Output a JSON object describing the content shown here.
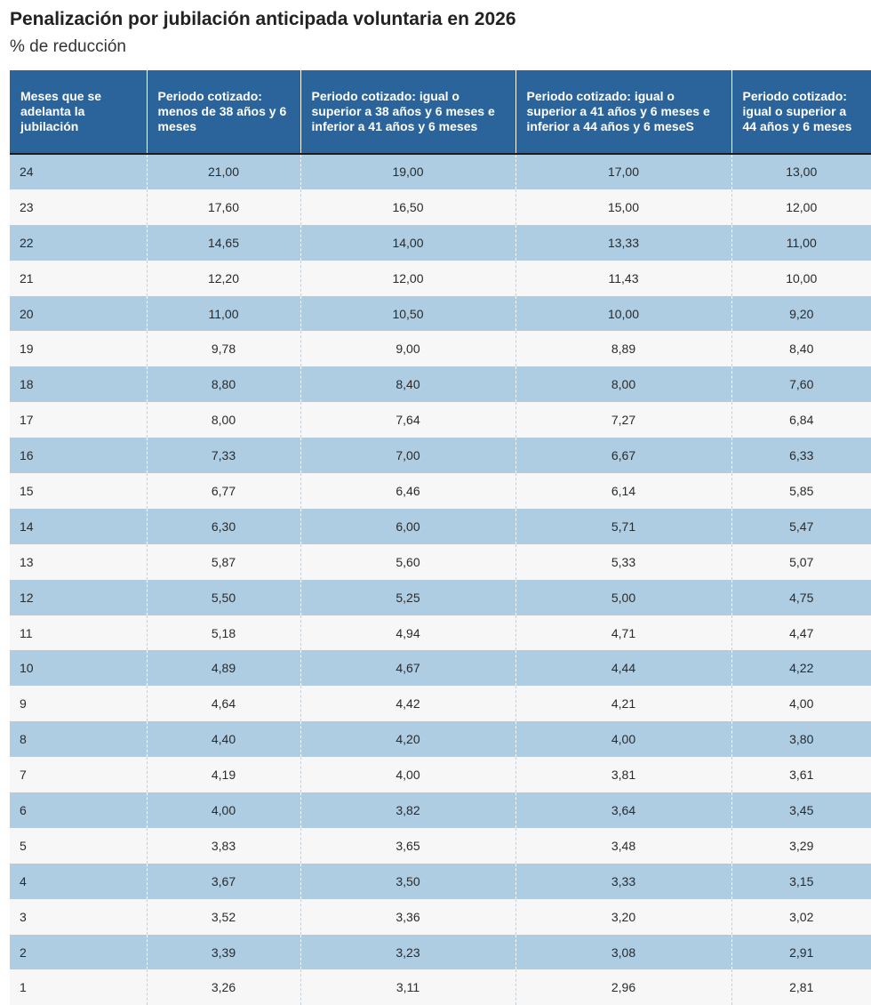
{
  "header": {
    "title": "Penalización por jubilación anticipada voluntaria en 2026",
    "subtitle": "% de reducción"
  },
  "chart_data": {
    "type": "table",
    "title": "Penalización por jubilación anticipada voluntaria en 2026",
    "subtitle": "% de reducción",
    "columns": [
      "Meses que se adelanta la jubilación",
      "Periodo cotizado: menos de 38 años y 6 meses",
      "Periodo cotizado: igual o superior a 38 años y 6 meses e inferior a 41 años y 6 meses",
      "Periodo cotizado: igual o superior a 41 años y 6 meses e inferior a 44 años y 6 meseS",
      "Periodo cotizado: igual o superior a 44 años y 6 meses"
    ],
    "rows": [
      [
        "24",
        "21,00",
        "19,00",
        "17,00",
        "13,00"
      ],
      [
        "23",
        "17,60",
        "16,50",
        "15,00",
        "12,00"
      ],
      [
        "22",
        "14,65",
        "14,00",
        "13,33",
        "11,00"
      ],
      [
        "21",
        "12,20",
        "12,00",
        "11,43",
        "10,00"
      ],
      [
        "20",
        "11,00",
        "10,50",
        "10,00",
        "9,20"
      ],
      [
        "19",
        "9,78",
        "9,00",
        "8,89",
        "8,40"
      ],
      [
        "18",
        "8,80",
        "8,40",
        "8,00",
        "7,60"
      ],
      [
        "17",
        "8,00",
        "7,64",
        "7,27",
        "6,84"
      ],
      [
        "16",
        "7,33",
        "7,00",
        "6,67",
        "6,33"
      ],
      [
        "15",
        "6,77",
        "6,46",
        "6,14",
        "5,85"
      ],
      [
        "14",
        "6,30",
        "6,00",
        "5,71",
        "5,47"
      ],
      [
        "13",
        "5,87",
        "5,60",
        "5,33",
        "5,07"
      ],
      [
        "12",
        "5,50",
        "5,25",
        "5,00",
        "4,75"
      ],
      [
        "11",
        "5,18",
        "4,94",
        "4,71",
        "4,47"
      ],
      [
        "10",
        "4,89",
        "4,67",
        "4,44",
        "4,22"
      ],
      [
        "9",
        "4,64",
        "4,42",
        "4,21",
        "4,00"
      ],
      [
        "8",
        "4,40",
        "4,20",
        "4,00",
        "3,80"
      ],
      [
        "7",
        "4,19",
        "4,00",
        "3,81",
        "3,61"
      ],
      [
        "6",
        "4,00",
        "3,82",
        "3,64",
        "3,45"
      ],
      [
        "5",
        "3,83",
        "3,65",
        "3,48",
        "3,29"
      ],
      [
        "4",
        "3,67",
        "3,50",
        "3,33",
        "3,15"
      ],
      [
        "3",
        "3,52",
        "3,36",
        "3,20",
        "3,02"
      ],
      [
        "2",
        "3,39",
        "3,23",
        "3,08",
        "2,91"
      ],
      [
        "1",
        "3,26",
        "3,11",
        "2,96",
        "2,81"
      ]
    ],
    "colors": {
      "header_bg": "#2b649b",
      "header_text": "#ffffff",
      "row_band": "#aecde3",
      "row_alt": "#f7f7f7"
    }
  }
}
